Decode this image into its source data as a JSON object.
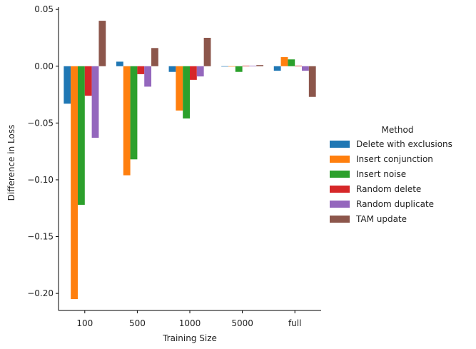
{
  "chart_data": {
    "type": "bar",
    "categories": [
      "100",
      "500",
      "1000",
      "5000",
      "full"
    ],
    "xlabel": "Training Size",
    "ylabel": "Difference in Loss",
    "ylim": [
      -0.215,
      0.052
    ],
    "yticks": [
      0.05,
      0.0,
      -0.05,
      -0.1,
      -0.15,
      -0.2
    ],
    "ytick_labels": [
      "0.05",
      "0.00",
      "−0.05",
      "−0.10",
      "−0.15",
      "−0.20"
    ],
    "grid": false,
    "legend": {
      "title": "Method",
      "placement": "right"
    },
    "series": [
      {
        "name": "Delete with exclusions",
        "color": "#1f77b4",
        "values": [
          -0.033,
          0.004,
          -0.005,
          0.0,
          -0.004
        ]
      },
      {
        "name": "Insert conjunction",
        "color": "#ff7f0e",
        "values": [
          -0.205,
          -0.096,
          -0.039,
          0.0,
          0.008
        ]
      },
      {
        "name": "Insert noise",
        "color": "#2ca02c",
        "values": [
          -0.122,
          -0.082,
          -0.046,
          -0.005,
          0.006
        ]
      },
      {
        "name": "Random delete",
        "color": "#d62728",
        "values": [
          -0.026,
          -0.007,
          -0.012,
          0.0005,
          0.0005
        ]
      },
      {
        "name": "Random duplicate",
        "color": "#9467bd",
        "values": [
          -0.063,
          -0.018,
          -0.009,
          0.0005,
          -0.004
        ]
      },
      {
        "name": "TAM update",
        "color": "#8c564b",
        "values": [
          0.04,
          0.016,
          0.025,
          0.001,
          -0.027
        ]
      }
    ]
  }
}
